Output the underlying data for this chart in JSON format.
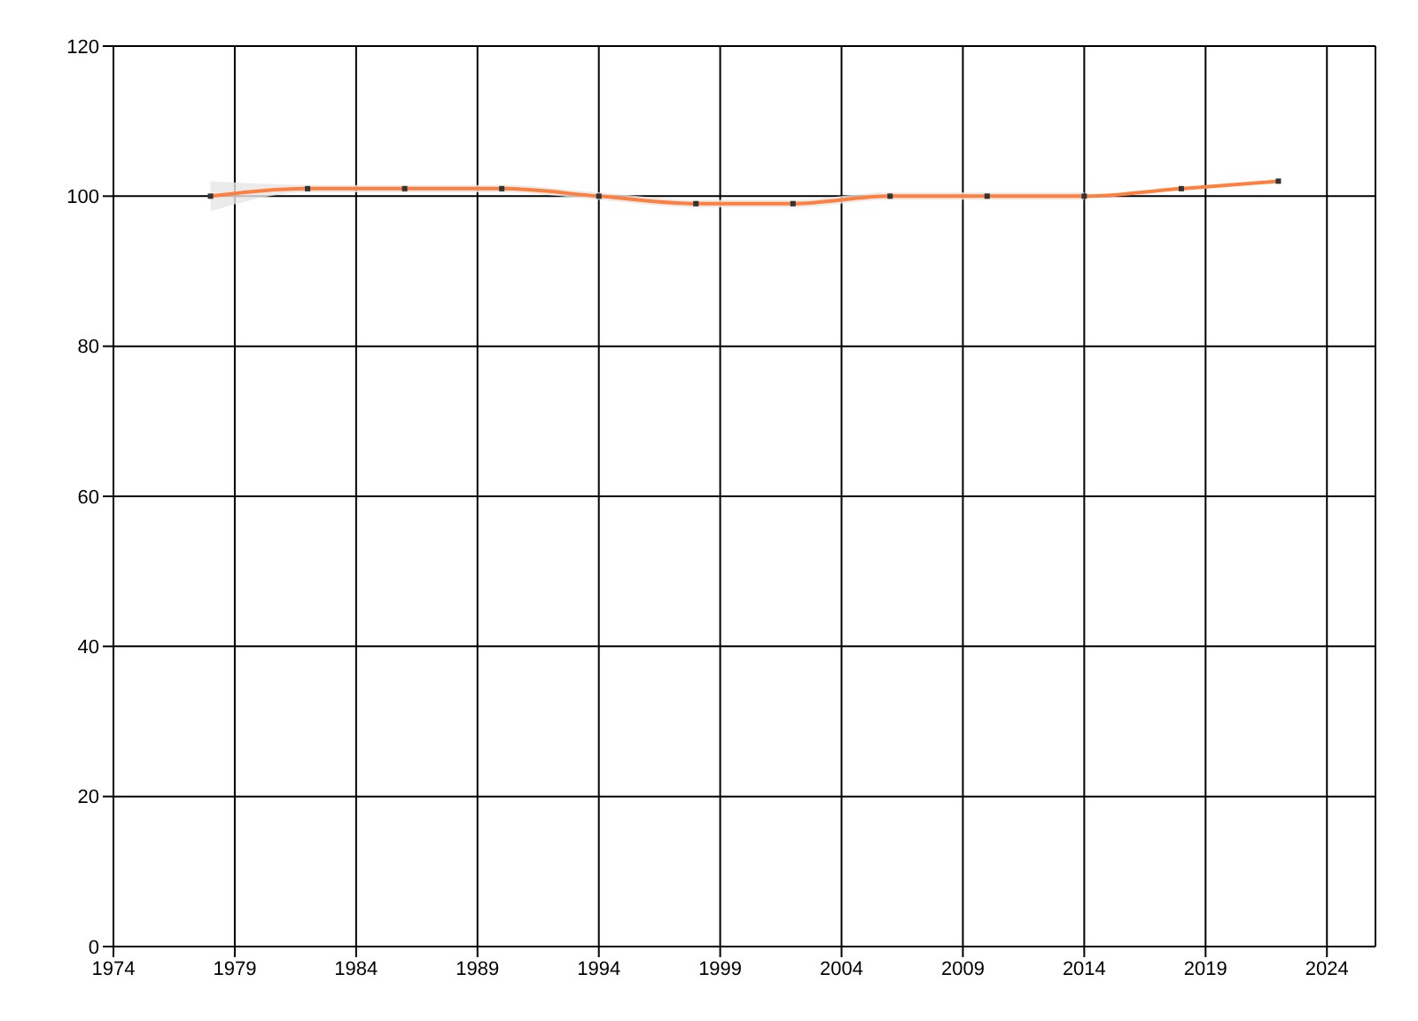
{
  "chart_data": {
    "type": "line",
    "x": [
      1978,
      1982,
      1986,
      1990,
      1994,
      1998,
      2002,
      2006,
      2010,
      2014,
      2018,
      2022
    ],
    "series": [
      {
        "color": "#ff7f3f",
        "values": [
          100,
          101,
          101,
          101,
          100,
          99,
          99,
          100,
          100,
          100,
          101,
          102
        ],
        "lower": [
          98,
          100.5,
          100.5,
          100.5,
          99.5,
          98.5,
          98.5,
          99.5,
          99.5,
          99.5,
          null,
          null
        ],
        "upper": [
          102,
          101.5,
          101.5,
          101.5,
          100.5,
          99.5,
          99.5,
          100.5,
          100.5,
          100.5,
          null,
          null
        ]
      }
    ],
    "xlim": [
      1974,
      2026
    ],
    "xticks": [
      1974,
      1979,
      1984,
      1989,
      1994,
      1999,
      2004,
      2009,
      2014,
      2019,
      2024
    ],
    "ylim": [
      0,
      120
    ],
    "yticks": [
      0,
      20,
      40,
      60,
      80,
      100,
      120
    ],
    "grid": true,
    "marker": "square"
  }
}
